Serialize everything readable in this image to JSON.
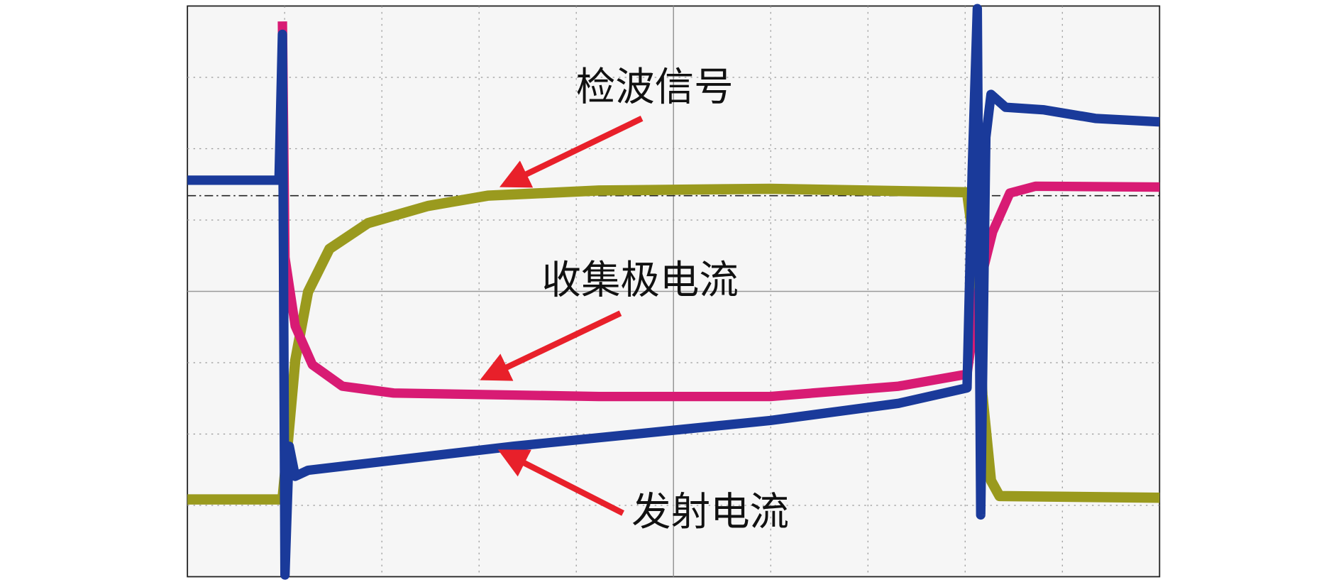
{
  "annotations": [
    "检波信号",
    "收集极电流",
    "发射电流"
  ]
}
